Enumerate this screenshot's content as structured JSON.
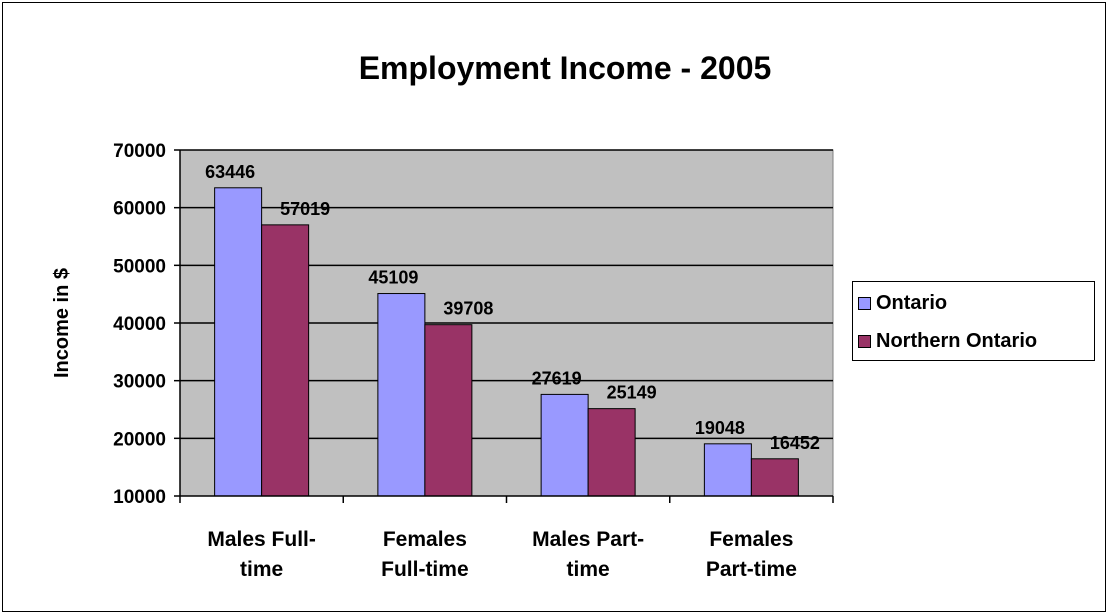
{
  "chart_data": {
    "type": "bar",
    "title": "Employment Income - 2005",
    "xlabel": "",
    "ylabel": "Income in $",
    "ylim": [
      10000,
      70000
    ],
    "yticks": [
      10000,
      20000,
      30000,
      40000,
      50000,
      60000,
      70000
    ],
    "categories": [
      [
        "Males Full-",
        "time"
      ],
      [
        "Females",
        "Full-time"
      ],
      [
        "Males Part-",
        "time"
      ],
      [
        "Females",
        "Part-time"
      ]
    ],
    "series": [
      {
        "name": "Ontario",
        "color": "#9999ff",
        "values": [
          63446,
          45109,
          27619,
          19048
        ]
      },
      {
        "name": "Northern Ontario",
        "color": "#993366",
        "values": [
          57019,
          39708,
          25149,
          16452
        ]
      }
    ],
    "grid": true,
    "plot_background": "#c0c0c0",
    "legend_position": "right"
  }
}
